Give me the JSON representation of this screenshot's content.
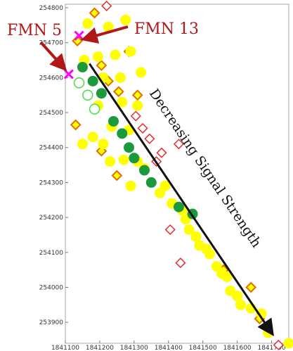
{
  "chart_data": {
    "type": "scatter",
    "xlim": [
      1841100,
      1841750
    ],
    "ylim": [
      253840,
      254810
    ],
    "x_ticks": [
      1841100,
      1841200,
      1841300,
      1841400,
      1841500,
      1841600,
      1841700
    ],
    "x_tick_labels": [
      "1841100",
      "1841200",
      "1841300",
      "1841400",
      "1841500",
      "1841600",
      "1841700"
    ],
    "y_ticks": [
      253900,
      254000,
      254100,
      254200,
      254300,
      254400,
      254500,
      254600,
      254700,
      254800
    ],
    "y_tick_labels": [
      "253900",
      "254000",
      "254100",
      "254200",
      "254300",
      "254400",
      "254500",
      "254600",
      "254700",
      "254800"
    ],
    "grid": false,
    "colors": {
      "yellow": "#ffff00",
      "green": "#1a9a3c",
      "light_green": "#44dd44",
      "orange_outline": "#e07000",
      "red_outline": "#e03030",
      "magenta": "#ff00ff",
      "label_red": "#b01818",
      "arrow_dark": "#111111"
    },
    "series": [
      {
        "marker": "filled-circle-yellow",
        "points": [
          [
            1841165,
            254755
          ],
          [
            1841225,
            254745
          ],
          [
            1841275,
            254765
          ],
          [
            1841155,
            254650
          ],
          [
            1841195,
            254660
          ],
          [
            1841245,
            254665
          ],
          [
            1841290,
            254675
          ],
          [
            1841210,
            254600
          ],
          [
            1841260,
            254600
          ],
          [
            1841320,
            254615
          ],
          [
            1841195,
            254520
          ],
          [
            1841265,
            254530
          ],
          [
            1841310,
            254520
          ],
          [
            1841235,
            254460
          ],
          [
            1841285,
            254450
          ],
          [
            1841180,
            254430
          ],
          [
            1841210,
            254410
          ],
          [
            1841150,
            254410
          ],
          [
            1841230,
            254360
          ],
          [
            1841270,
            254365
          ],
          [
            1841310,
            254360
          ],
          [
            1841330,
            254340
          ],
          [
            1841290,
            254290
          ],
          [
            1841375,
            254270
          ],
          [
            1841390,
            254290
          ],
          [
            1841410,
            254240
          ],
          [
            1841440,
            254220
          ],
          [
            1841450,
            254195
          ],
          [
            1841460,
            254165
          ],
          [
            1841480,
            254145
          ],
          [
            1841490,
            254120
          ],
          [
            1841510,
            254110
          ],
          [
            1841520,
            254095
          ],
          [
            1841540,
            254060
          ],
          [
            1841555,
            254040
          ],
          [
            1841570,
            254030
          ],
          [
            1841580,
            253990
          ],
          [
            1841600,
            253975
          ],
          [
            1841610,
            253950
          ],
          [
            1841640,
            253940
          ],
          [
            1841670,
            253925
          ],
          [
            1841690,
            253870
          ],
          [
            1841750,
            253840
          ]
        ]
      },
      {
        "marker": "filled-circle-green",
        "points": [
          [
            1841150,
            254630
          ],
          [
            1841180,
            254590
          ],
          [
            1841205,
            254555
          ],
          [
            1841240,
            254475
          ],
          [
            1841265,
            254440
          ],
          [
            1841285,
            254400
          ],
          [
            1841300,
            254370
          ],
          [
            1841330,
            254335
          ],
          [
            1841350,
            254300
          ],
          [
            1841430,
            254230
          ],
          [
            1841470,
            254210
          ]
        ]
      },
      {
        "marker": "open-circle-green",
        "points": [
          [
            1841140,
            254585
          ],
          [
            1841165,
            254550
          ],
          [
            1841185,
            254510
          ]
        ]
      },
      {
        "marker": "open-diamond-orange",
        "points": [
          [
            1841185,
            254785
          ],
          [
            1841135,
            254705
          ],
          [
            1841285,
            254675
          ],
          [
            1841205,
            254635
          ],
          [
            1841225,
            254590
          ],
          [
            1841255,
            254560
          ],
          [
            1841310,
            254550
          ],
          [
            1841130,
            254465
          ],
          [
            1841205,
            254390
          ],
          [
            1841250,
            254320
          ],
          [
            1841560,
            254050
          ],
          [
            1841640,
            254000
          ],
          [
            1841665,
            253910
          ]
        ]
      },
      {
        "marker": "open-diamond-red",
        "points": [
          [
            1841220,
            254805
          ],
          [
            1841305,
            254490
          ],
          [
            1841325,
            254455
          ],
          [
            1841345,
            254425
          ],
          [
            1841380,
            254385
          ],
          [
            1841430,
            254410
          ],
          [
            1841365,
            254360
          ],
          [
            1841405,
            254165
          ],
          [
            1841435,
            254070
          ],
          [
            1841720,
            253835
          ]
        ]
      },
      {
        "marker": "x-magenta",
        "points": [
          [
            1841140,
            254720
          ],
          [
            1841110,
            254610
          ]
        ]
      }
    ],
    "annotations": [
      {
        "text": "FMN 5",
        "points_to": [
          1841110,
          254610
        ]
      },
      {
        "text": "FMN 13",
        "points_to": [
          1841140,
          254720
        ]
      },
      {
        "text": "Decreasing Signal Strength",
        "arrow_from": [
          1841170,
          254640
        ],
        "arrow_to": [
          1841700,
          253870
        ]
      }
    ]
  }
}
